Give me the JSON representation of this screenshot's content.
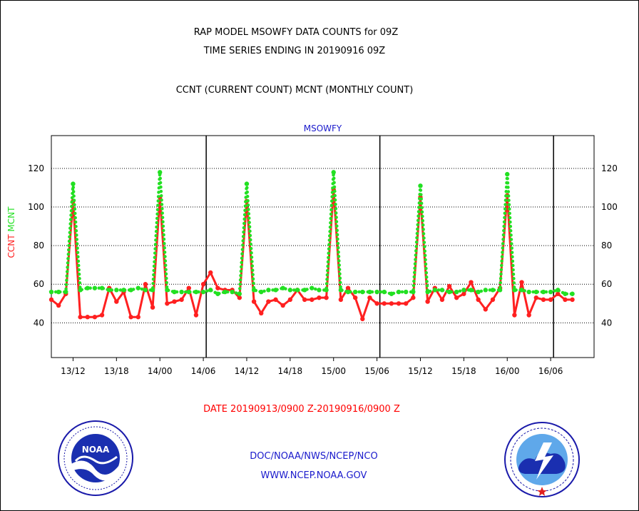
{
  "header": {
    "title_line1": "RAP MODEL MSOWFY DATA COUNTS for 09Z",
    "title_line2": "TIME SERIES ENDING IN 20190916 09Z",
    "title_line3": "CCNT (CURRENT COUNT) MCNT (MONTHLY COUNT)"
  },
  "footer": {
    "date_range": "DATE 20190913/0900 Z-20190916/0900 Z",
    "org": "DOC/NOAA/NWS/NCEP/NCO",
    "url": "WWW.NCEP.NOAA.GOV"
  },
  "logos": {
    "left": {
      "name": "noaa-logo",
      "text": "NOAA"
    },
    "right": {
      "name": "nws-logo"
    }
  },
  "colors": {
    "ccnt": "#ff2020",
    "mcnt": "#22e022",
    "grid": "#000000",
    "text_blue": "#1a1acc"
  },
  "chart_data": {
    "type": "line",
    "title": "MSOWFY",
    "ylabel_parts": [
      {
        "text": "CCNT",
        "color": "#ff2020"
      },
      {
        "text": "MCNT",
        "color": "#22e022"
      }
    ],
    "ylim": [
      22,
      137
    ],
    "yticks": [
      40,
      60,
      80,
      100,
      120
    ],
    "xlim": [
      0,
      75
    ],
    "xticks": [
      {
        "label": "13/12",
        "x": 3
      },
      {
        "label": "13/18",
        "x": 9
      },
      {
        "label": "14/00",
        "x": 15
      },
      {
        "label": "14/06",
        "x": 21
      },
      {
        "label": "14/12",
        "x": 27
      },
      {
        "label": "14/18",
        "x": 33
      },
      {
        "label": "15/00",
        "x": 39
      },
      {
        "label": "15/06",
        "x": 45
      },
      {
        "label": "15/12",
        "x": 51
      },
      {
        "label": "15/18",
        "x": 57
      },
      {
        "label": "16/00",
        "x": 63
      },
      {
        "label": "16/06",
        "x": 69
      }
    ],
    "day_separators": [
      21.4,
      45.4,
      69.4
    ],
    "grid": "horizontal-dotted",
    "series": [
      {
        "name": "CCNT",
        "color": "#ff2020",
        "x": [
          0,
          1,
          2,
          3,
          4,
          5,
          6,
          7,
          8,
          9,
          10,
          11,
          12,
          13,
          14,
          15,
          16,
          17,
          18,
          19,
          20,
          21,
          22,
          23,
          24,
          25,
          26,
          27,
          28,
          29,
          30,
          31,
          32,
          33,
          34,
          35,
          36,
          37,
          38,
          39,
          40,
          41,
          42,
          43,
          44,
          45,
          46,
          47,
          48,
          49,
          50,
          51,
          52,
          53,
          54,
          55,
          56,
          57,
          58,
          59,
          60,
          61,
          62,
          63,
          64,
          65,
          66,
          67,
          68,
          69,
          70,
          71,
          72
        ],
        "values": [
          52,
          49,
          55,
          103,
          43,
          43,
          43,
          44,
          58,
          51,
          56,
          43,
          43,
          60,
          48,
          105,
          50,
          51,
          52,
          58,
          44,
          60,
          66,
          58,
          57,
          57,
          53,
          103,
          51,
          45,
          51,
          52,
          49,
          52,
          57,
          52,
          52,
          53,
          53,
          109,
          52,
          58,
          53,
          42,
          53,
          50,
          50,
          50,
          50,
          50,
          53,
          105,
          51,
          58,
          52,
          59,
          53,
          55,
          61,
          52,
          47,
          52,
          58,
          106,
          44,
          61,
          44,
          53,
          52,
          52,
          55,
          52,
          52
        ]
      },
      {
        "name": "MCNT",
        "color": "#22e022",
        "x": [
          0,
          1,
          2,
          3,
          4,
          5,
          6,
          7,
          8,
          9,
          10,
          11,
          12,
          13,
          14,
          15,
          16,
          17,
          18,
          19,
          20,
          21,
          22,
          23,
          24,
          25,
          26,
          27,
          28,
          29,
          30,
          31,
          32,
          33,
          34,
          35,
          36,
          37,
          38,
          39,
          40,
          41,
          42,
          43,
          44,
          45,
          46,
          47,
          48,
          49,
          50,
          51,
          52,
          53,
          54,
          55,
          56,
          57,
          58,
          59,
          60,
          61,
          62,
          63,
          64,
          65,
          66,
          67,
          68,
          69,
          70,
          71,
          72
        ],
        "values": [
          56,
          56,
          56,
          112,
          57,
          58,
          58,
          58,
          57,
          57,
          57,
          57,
          58,
          57,
          57,
          118,
          57,
          56,
          56,
          56,
          56,
          56,
          57,
          55,
          56,
          56,
          55,
          112,
          57,
          56,
          57,
          57,
          58,
          57,
          57,
          57,
          58,
          57,
          57,
          118,
          57,
          56,
          56,
          56,
          56,
          56,
          56,
          55,
          56,
          56,
          56,
          111,
          56,
          57,
          57,
          56,
          56,
          57,
          57,
          56,
          57,
          57,
          57,
          117,
          57,
          57,
          56,
          56,
          56,
          56,
          57,
          55,
          55
        ]
      }
    ]
  }
}
